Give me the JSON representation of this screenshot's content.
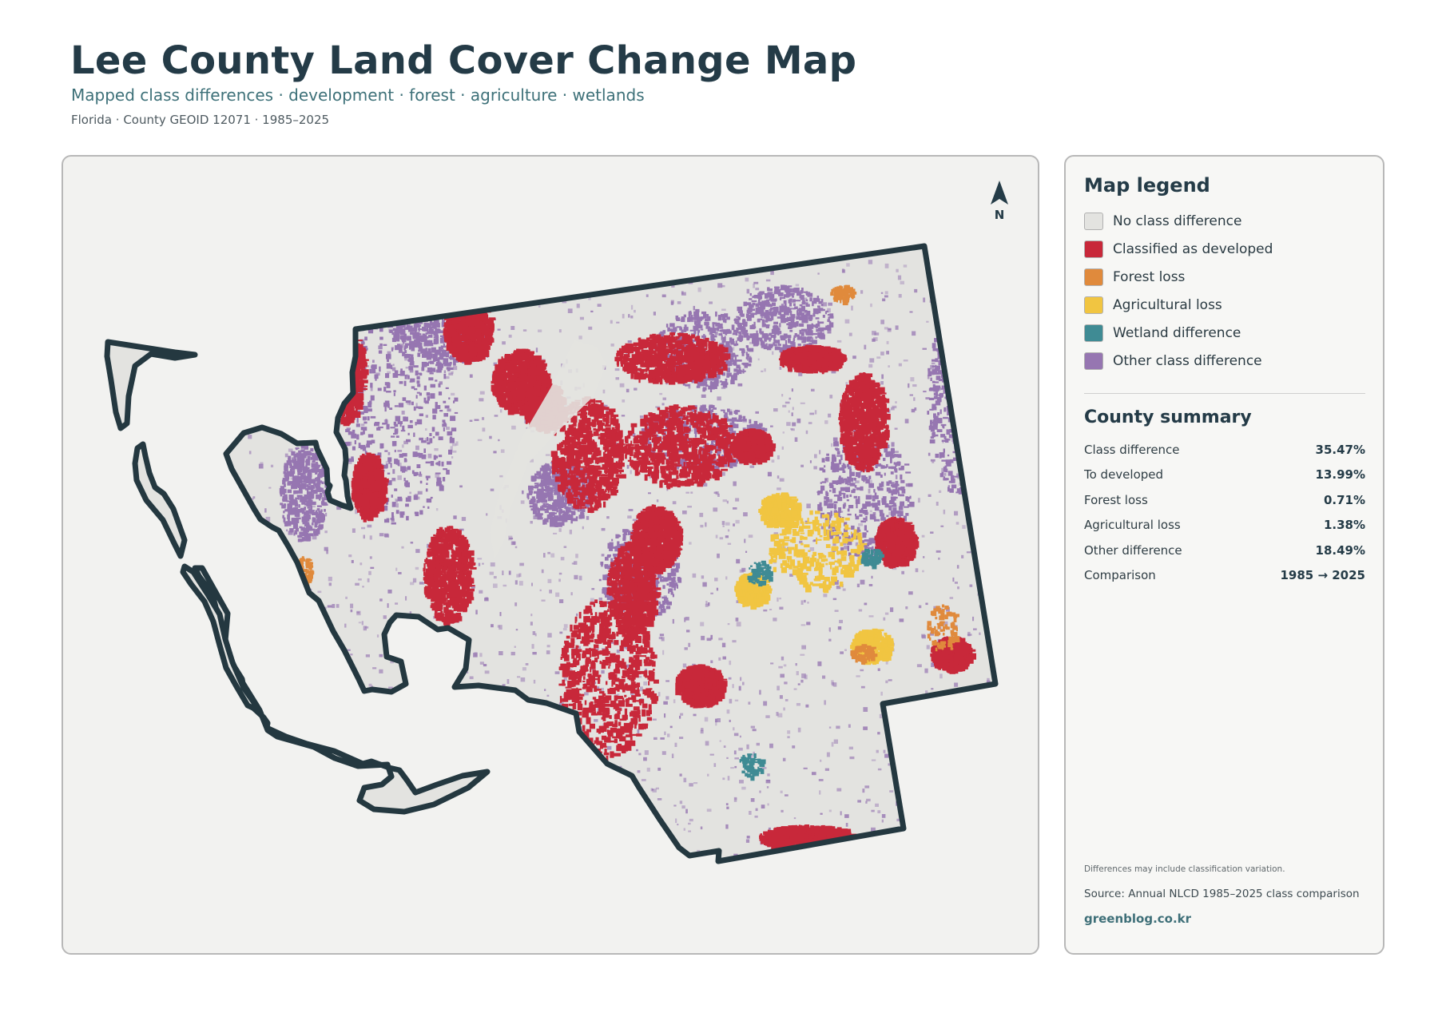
{
  "header": {
    "title": "Lee County Land Cover Change Map",
    "subtitle": "Mapped class differences · development · forest · agriculture · wetlands",
    "meta": "Florida · County GEOID 12071 · 1985–2025"
  },
  "map": {
    "north_label": "N",
    "colors": {
      "no_change": "#e3e3e0",
      "developed": "#c8283a",
      "forest": "#e08a3c",
      "agriculture": "#f1c541",
      "wetland": "#3f8b94",
      "other": "#9676b1",
      "outline": "#243840",
      "water": "#f2f2f0"
    }
  },
  "legend": {
    "title": "Map legend",
    "items": [
      {
        "label": "No class difference",
        "color": "#e3e3e0"
      },
      {
        "label": "Classified as developed",
        "color": "#c8283a"
      },
      {
        "label": "Forest loss",
        "color": "#e08a3c"
      },
      {
        "label": "Agricultural loss",
        "color": "#f1c541"
      },
      {
        "label": "Wetland difference",
        "color": "#3f8b94"
      },
      {
        "label": "Other class difference",
        "color": "#9676b1"
      }
    ]
  },
  "summary": {
    "title": "County summary",
    "rows": [
      {
        "label": "Class difference",
        "value": "35.47%"
      },
      {
        "label": "To developed",
        "value": "13.99%"
      },
      {
        "label": "Forest loss",
        "value": "0.71%"
      },
      {
        "label": "Agricultural loss",
        "value": "1.38%"
      },
      {
        "label": "Other difference",
        "value": "18.49%"
      },
      {
        "label": "Comparison",
        "value": "1985 → 2025"
      }
    ]
  },
  "footer": {
    "note": "Differences may include classification variation.",
    "source": "Source: Annual NLCD 1985–2025 class comparison",
    "site": "greenblog.co.kr"
  }
}
